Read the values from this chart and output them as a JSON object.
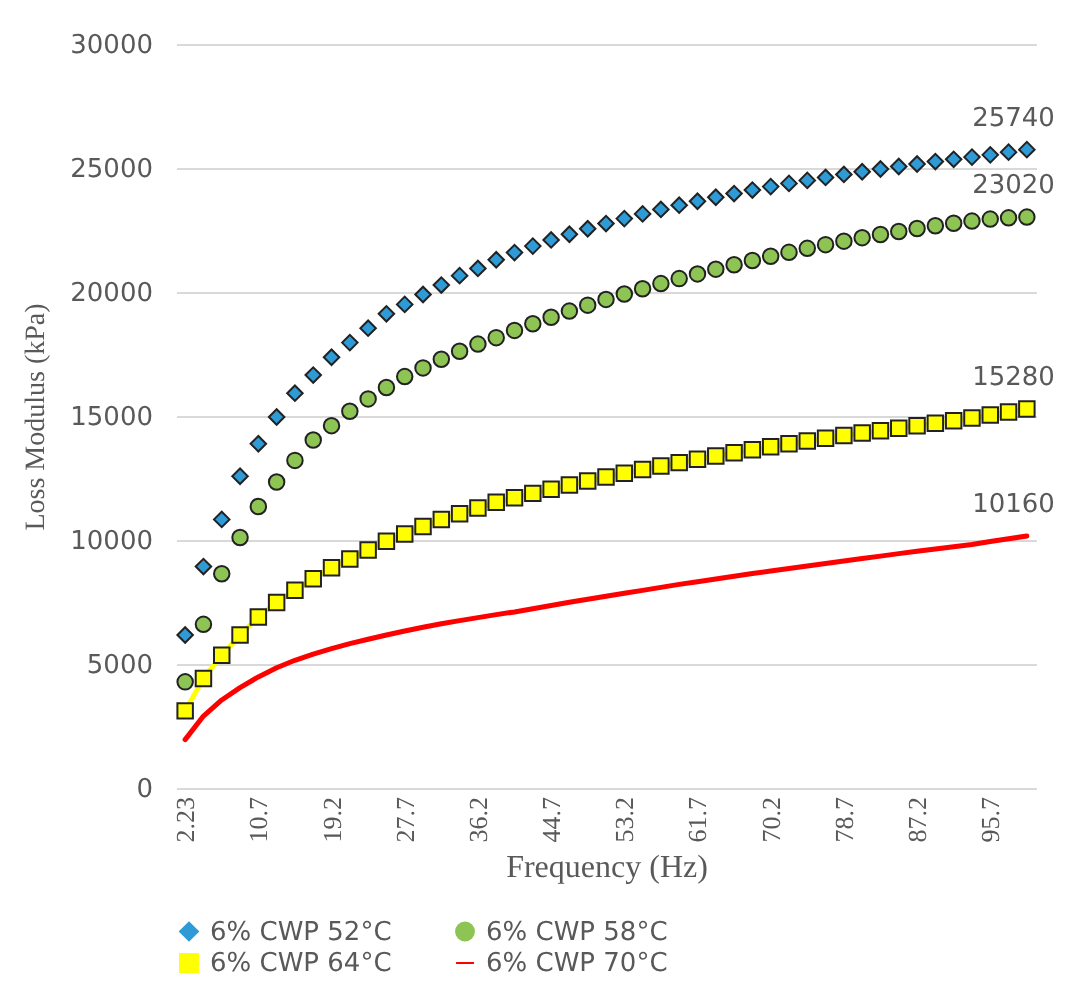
{
  "chart_data": {
    "type": "scatter",
    "xlabel": "Frequency (Hz)",
    "ylabel": "Loss Modulus (kPa)",
    "categories": [
      "2.23",
      null,
      null,
      null,
      "10.7",
      null,
      null,
      null,
      "19.2",
      null,
      null,
      null,
      "27.7",
      null,
      null,
      null,
      "36.2",
      null,
      null,
      null,
      "44.7",
      null,
      null,
      null,
      "53.2",
      null,
      null,
      null,
      "61.7",
      null,
      null,
      null,
      "70.2",
      null,
      null,
      null,
      "78.7",
      null,
      null,
      null,
      "87.2",
      null,
      null,
      null,
      "95.7",
      null,
      null
    ],
    "ylim": [
      0,
      30000
    ],
    "yticks": [
      0,
      5000,
      10000,
      15000,
      20000,
      25000,
      30000
    ],
    "grid": "y",
    "legend": "bottom",
    "series": [
      {
        "name": "6% CWP 52°C",
        "type": "scatter",
        "marker": "diamond",
        "color": "#2e9bd6",
        "values": [
          6170,
          8930,
          10830,
          12570,
          13880,
          14960,
          15920,
          16650,
          17370,
          17960,
          18540,
          19120,
          19500,
          19900,
          20280,
          20660,
          20950,
          21300,
          21590,
          21850,
          22100,
          22330,
          22550,
          22760,
          22960,
          23150,
          23330,
          23500,
          23660,
          23820,
          23970,
          24110,
          24250,
          24380,
          24500,
          24620,
          24740,
          24850,
          24960,
          25060,
          25160,
          25260,
          25350,
          25440,
          25530,
          25640,
          25740
        ],
        "value_labels": [
          null,
          null,
          null,
          null,
          null,
          null,
          null,
          null,
          null,
          null,
          null,
          null,
          null,
          null,
          null,
          null,
          null,
          null,
          null,
          null,
          null,
          null,
          null,
          null,
          null,
          null,
          null,
          null,
          null,
          null,
          null,
          null,
          null,
          null,
          null,
          null,
          null,
          null,
          null,
          null,
          null,
          null,
          null,
          null,
          null,
          null,
          "25740"
        ]
      },
      {
        "name": "6% CWP 58°C",
        "type": "scatter",
        "marker": "circle",
        "color": "#8dc454",
        "values": [
          4280,
          6600,
          8640,
          10100,
          11350,
          12340,
          13210,
          14030,
          14610,
          15190,
          15690,
          16150,
          16590,
          16940,
          17290,
          17610,
          17900,
          18160,
          18450,
          18720,
          18980,
          19230,
          19470,
          19700,
          19920,
          20130,
          20340,
          20540,
          20730,
          20920,
          21100,
          21270,
          21440,
          21600,
          21760,
          21910,
          22050,
          22190,
          22320,
          22440,
          22560,
          22670,
          22770,
          22860,
          22940,
          22990,
          23020
        ],
        "value_labels": [
          null,
          null,
          null,
          null,
          null,
          null,
          null,
          null,
          null,
          null,
          null,
          null,
          null,
          null,
          null,
          null,
          null,
          null,
          null,
          null,
          null,
          null,
          null,
          null,
          null,
          null,
          null,
          null,
          null,
          null,
          null,
          null,
          null,
          null,
          null,
          null,
          null,
          null,
          null,
          null,
          null,
          null,
          null,
          null,
          null,
          null,
          "23020"
        ]
      },
      {
        "name": "6% CWP 64°C",
        "type": "line",
        "marker": "square",
        "color": "#ffff00",
        "values": [
          3110,
          4420,
          5350,
          6170,
          6900,
          7480,
          7970,
          8440,
          8880,
          9230,
          9600,
          9950,
          10240,
          10540,
          10830,
          11060,
          11290,
          11520,
          11700,
          11880,
          12050,
          12220,
          12380,
          12540,
          12690,
          12840,
          12980,
          13120,
          13260,
          13390,
          13520,
          13640,
          13760,
          13880,
          13990,
          14100,
          14210,
          14310,
          14410,
          14510,
          14610,
          14710,
          14810,
          14920,
          15040,
          15160,
          15280
        ],
        "value_labels": [
          null,
          null,
          null,
          null,
          null,
          null,
          null,
          null,
          null,
          null,
          null,
          null,
          null,
          null,
          null,
          null,
          null,
          null,
          null,
          null,
          null,
          null,
          null,
          null,
          null,
          null,
          null,
          null,
          null,
          null,
          null,
          null,
          null,
          null,
          null,
          null,
          null,
          null,
          null,
          null,
          null,
          null,
          null,
          null,
          null,
          null,
          "15280"
        ]
      },
      {
        "name": "6% CWP 70°C",
        "type": "line",
        "marker": "none",
        "color": "#ff0000",
        "values": [
          1950,
          2900,
          3550,
          4050,
          4480,
          4850,
          5150,
          5400,
          5620,
          5820,
          6000,
          6170,
          6330,
          6480,
          6620,
          6750,
          6870,
          6990,
          7100,
          7230,
          7360,
          7490,
          7610,
          7730,
          7850,
          7970,
          8090,
          8210,
          8320,
          8430,
          8540,
          8650,
          8750,
          8850,
          8950,
          9050,
          9150,
          9250,
          9350,
          9450,
          9550,
          9640,
          9730,
          9820,
          9940,
          10050,
          10160
        ],
        "value_labels": [
          null,
          null,
          null,
          null,
          null,
          null,
          null,
          null,
          null,
          null,
          null,
          null,
          null,
          null,
          null,
          null,
          null,
          null,
          null,
          null,
          null,
          null,
          null,
          null,
          null,
          null,
          null,
          null,
          null,
          null,
          null,
          null,
          null,
          null,
          null,
          null,
          null,
          null,
          null,
          null,
          null,
          null,
          null,
          null,
          null,
          null,
          "10160"
        ]
      }
    ]
  }
}
